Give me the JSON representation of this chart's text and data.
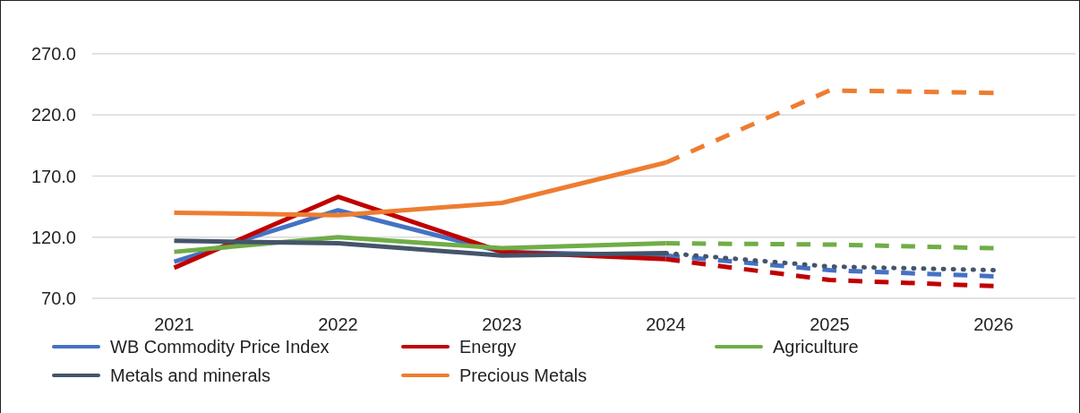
{
  "chart_data": {
    "type": "line",
    "categories": [
      "2021",
      "2022",
      "2023",
      "2024",
      "2025",
      "2026"
    ],
    "series": [
      {
        "name": "WB Commodity Price Index",
        "color": "#4472c4",
        "values": [
          100,
          142,
          108,
          105,
          null,
          null
        ]
      },
      {
        "name": "Energy",
        "color": "#c00000",
        "values": [
          95,
          153,
          108,
          102,
          null,
          null
        ]
      },
      {
        "name": "Agriculture",
        "color": "#70ad47",
        "values": [
          108,
          120,
          111,
          115,
          null,
          null
        ]
      },
      {
        "name": "Metals and minerals",
        "color": "#44546a",
        "values": [
          117,
          115,
          105,
          107,
          null,
          null
        ]
      },
      {
        "name": "Precious Metals",
        "color": "#ed7d31",
        "values": [
          140,
          138,
          148,
          181,
          null,
          null
        ]
      },
      {
        "color": "#4472c4",
        "line_style": "dashed",
        "values": [
          null,
          null,
          null,
          105,
          93,
          88
        ]
      },
      {
        "color": "#c00000",
        "line_style": "dashed",
        "values": [
          null,
          null,
          null,
          102,
          85,
          80
        ]
      },
      {
        "color": "#70ad47",
        "line_style": "dashed",
        "values": [
          null,
          null,
          null,
          115,
          114,
          111
        ]
      },
      {
        "color": "#44546a",
        "line_style": "dotted",
        "values": [
          null,
          null,
          null,
          107,
          96,
          93
        ]
      },
      {
        "color": "#ed7d31",
        "line_style": "dashed",
        "values": [
          null,
          null,
          null,
          181,
          240,
          238
        ]
      }
    ],
    "ylim": [
      70,
      270
    ],
    "yticks": [
      {
        "value": 70,
        "label": "70.0"
      },
      {
        "value": 120,
        "label": "120.0"
      },
      {
        "value": 170,
        "label": "170.0"
      },
      {
        "value": 220,
        "label": "220.0"
      },
      {
        "value": 270,
        "label": "270.0"
      }
    ],
    "grid": "y",
    "legend": "bottom",
    "line_style": "solid"
  }
}
